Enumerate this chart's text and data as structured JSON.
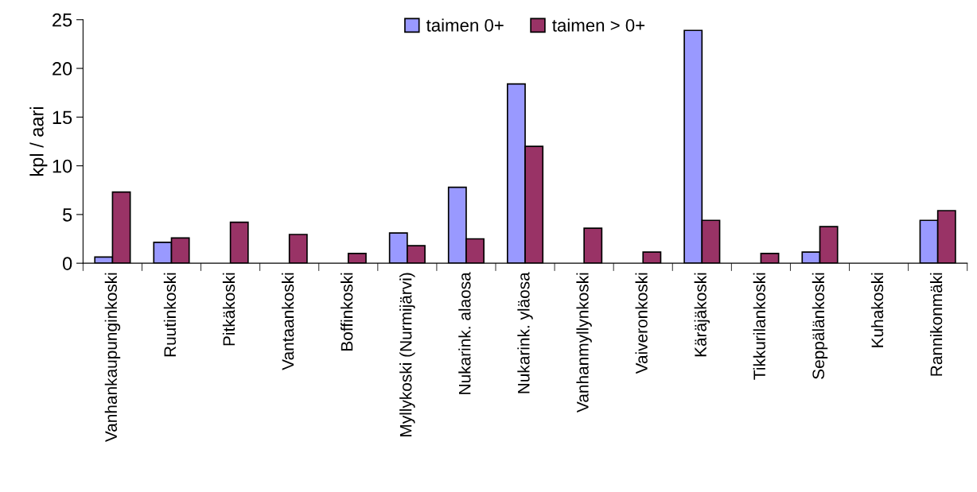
{
  "chart_data": {
    "type": "bar",
    "ylabel": "kpl / aari",
    "categories": [
      "Vanhankaupunginkoski",
      "Ruutinkoski",
      "Pitkäkoski",
      "Vantaankoski",
      "Boffinkoski",
      "Myllykoski (Nurmijärvi)",
      "Nukarink. alaosa",
      "Nukarink. yläosa",
      "Vanhanmyllynkoski",
      "Vaiveronkoski",
      "Käräjäkoski",
      "Tikkurilankoski",
      "Seppälänkoski",
      "Kuhakoski",
      "Rannikonmäki"
    ],
    "series": [
      {
        "name": "taimen 0+",
        "color": "#9999ff",
        "values": [
          0.64,
          2.15,
          null,
          null,
          null,
          3.1,
          7.8,
          18.4,
          null,
          null,
          23.9,
          null,
          1.15,
          null,
          4.4
        ]
      },
      {
        "name": "taimen > 0+",
        "color": "#993366",
        "values": [
          7.3,
          2.6,
          4.2,
          2.95,
          1.0,
          1.8,
          2.5,
          12.0,
          3.6,
          1.15,
          4.4,
          1.0,
          3.75,
          null,
          5.4
        ]
      }
    ],
    "ylim": [
      0,
      25
    ],
    "yticks": [
      0,
      5,
      10,
      15,
      20,
      25
    ],
    "grid": false,
    "legend": "top"
  }
}
